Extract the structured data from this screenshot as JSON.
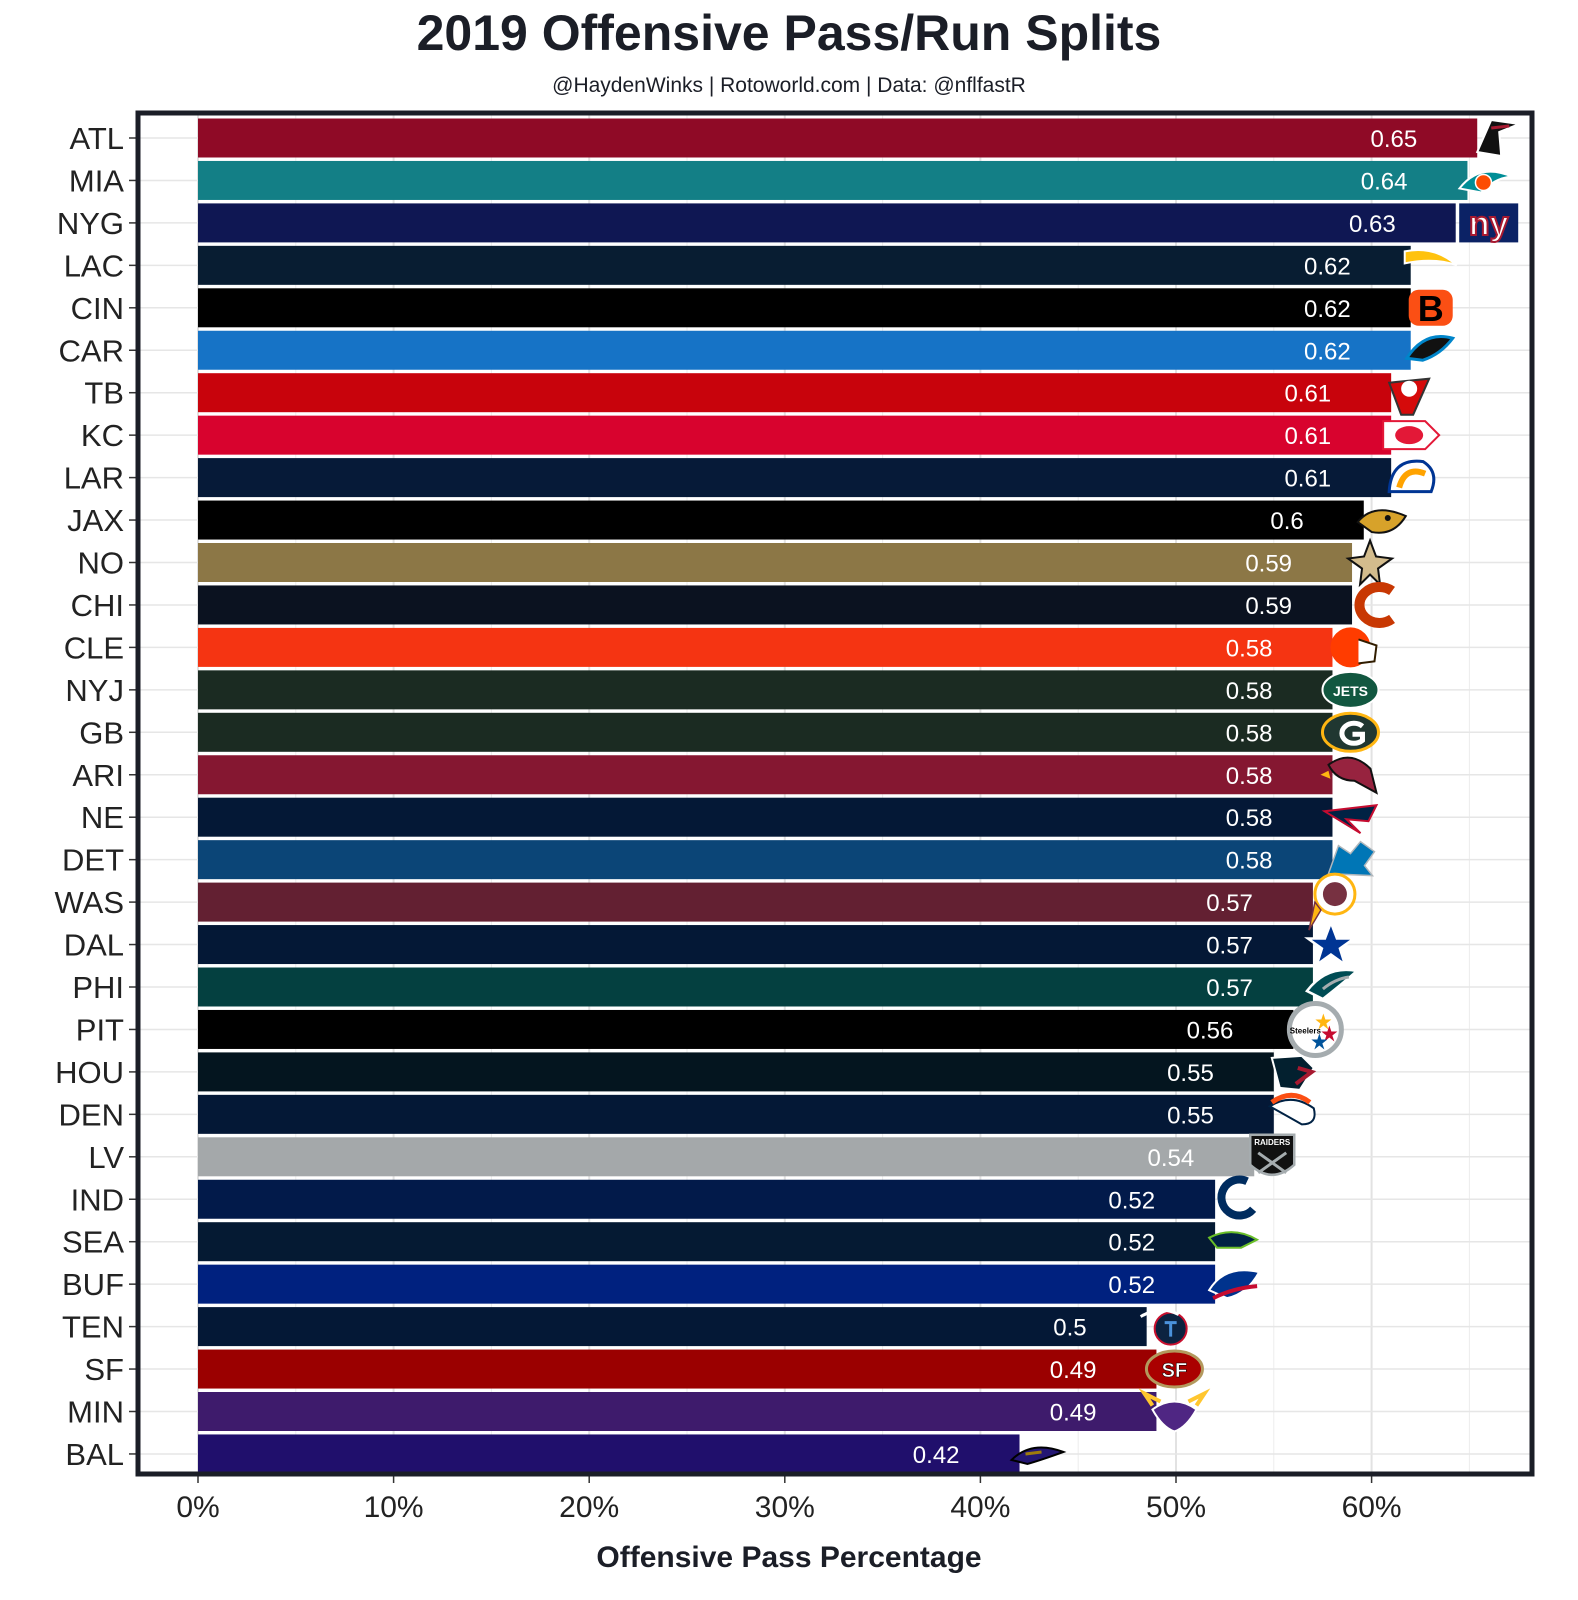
{
  "chart_data": {
    "type": "bar",
    "orientation": "horizontal",
    "title": "2019 Offensive Pass/Run Splits",
    "subtitle": "@HaydenWinks | Rotoworld.com | Data: @nflfastR",
    "xlabel": "Offensive Pass Percentage",
    "ylabel": "",
    "xlim": [
      -0.03,
      0.68
    ],
    "x_ticks": [
      0,
      0.1,
      0.2,
      0.3,
      0.4,
      0.5,
      0.6
    ],
    "x_tick_labels": [
      "0%",
      "10%",
      "20%",
      "30%",
      "40%",
      "50%",
      "60%"
    ],
    "grid": true,
    "categories": [
      "ATL",
      "MIA",
      "NYG",
      "LAC",
      "CIN",
      "CAR",
      "TB",
      "KC",
      "LAR",
      "JAX",
      "NO",
      "CHI",
      "CLE",
      "NYJ",
      "GB",
      "ARI",
      "NE",
      "DET",
      "WAS",
      "DAL",
      "PHI",
      "PIT",
      "HOU",
      "DEN",
      "LV",
      "IND",
      "SEA",
      "BUF",
      "TEN",
      "SF",
      "MIN",
      "BAL"
    ],
    "values": [
      0.65,
      0.64,
      0.63,
      0.62,
      0.62,
      0.62,
      0.61,
      0.61,
      0.61,
      0.6,
      0.59,
      0.59,
      0.58,
      0.58,
      0.58,
      0.58,
      0.58,
      0.58,
      0.57,
      0.57,
      0.57,
      0.56,
      0.55,
      0.55,
      0.54,
      0.52,
      0.52,
      0.52,
      0.5,
      0.49,
      0.49,
      0.42
    ],
    "bar_lengths": [
      0.654,
      0.649,
      0.643,
      0.62,
      0.62,
      0.62,
      0.61,
      0.61,
      0.61,
      0.596,
      0.59,
      0.59,
      0.58,
      0.58,
      0.58,
      0.58,
      0.58,
      0.58,
      0.57,
      0.57,
      0.57,
      0.56,
      0.55,
      0.55,
      0.54,
      0.52,
      0.52,
      0.52,
      0.485,
      0.49,
      0.49,
      0.42
    ],
    "value_labels": [
      "0.65",
      "0.64",
      "0.63",
      "0.62",
      "0.62",
      "0.62",
      "0.61",
      "0.61",
      "0.61",
      "0.6",
      "0.59",
      "0.59",
      "0.58",
      "0.58",
      "0.58",
      "0.58",
      "0.58",
      "0.58",
      "0.57",
      "0.57",
      "0.57",
      "0.56",
      "0.55",
      "0.55",
      "0.54",
      "0.52",
      "0.52",
      "0.52",
      "0.5",
      "0.49",
      "0.49",
      "0.42"
    ],
    "colors": [
      "#8f0a26",
      "#137f86",
      "#0f1753",
      "#081d32",
      "#000000",
      "#1673c6",
      "#c8030c",
      "#d8032e",
      "#061a38",
      "#000000",
      "#8c7746",
      "#0b1220",
      "#f53412",
      "#1b2b22",
      "#1b2b22",
      "#851731",
      "#041836",
      "#0b4577",
      "#632032",
      "#041836",
      "#044040",
      "#000000",
      "#04151f",
      "#041836",
      "#a4a8aa",
      "#021a4a",
      "#051a33",
      "#00217f",
      "#041836",
      "#9b0000",
      "#3e1b6c",
      "#200f6c"
    ],
    "logo_icons": [
      "falcons-logo-icon",
      "dolphins-logo-icon",
      "giants-logo-icon",
      "chargers-logo-icon",
      "bengals-logo-icon",
      "panthers-logo-icon",
      "buccaneers-logo-icon",
      "chiefs-logo-icon",
      "rams-logo-icon",
      "jaguars-logo-icon",
      "saints-logo-icon",
      "bears-logo-icon",
      "browns-logo-icon",
      "jets-logo-icon",
      "packers-logo-icon",
      "cardinals-logo-icon",
      "patriots-logo-icon",
      "lions-logo-icon",
      "redskins-logo-icon",
      "cowboys-logo-icon",
      "eagles-logo-icon",
      "steelers-logo-icon",
      "texans-logo-icon",
      "broncos-logo-icon",
      "raiders-logo-icon",
      "colts-logo-icon",
      "seahawks-logo-icon",
      "bills-logo-icon",
      "titans-logo-icon",
      "49ers-logo-icon",
      "vikings-logo-icon",
      "ravens-logo-icon"
    ],
    "logo_colors": [
      "#a71930",
      "#008e97",
      "#0b2265",
      "#ffc20e",
      "#fb4f14",
      "#0085ca",
      "#d50a0a",
      "#e31837",
      "#ffa300",
      "#d7a22a",
      "#d3bc8d",
      "#c83803",
      "#ff3c00",
      "#125740",
      "#203731",
      "#97233f",
      "#c60c30",
      "#0076b6",
      "#ffb612",
      "#003594",
      "#004c54",
      "#ffb612",
      "#a71930",
      "#fb4f14",
      "#a5acaf",
      "#002c5f",
      "#69be28",
      "#c60c30",
      "#4b92db",
      "#aa0000",
      "#ffc62f",
      "#241773"
    ],
    "logo_texts": {
      "giants": "ny",
      "bengals": "B",
      "jets": "JETS",
      "raiders": "RAIDERS",
      "steelers": "Steelers",
      "niners": "SF"
    }
  }
}
